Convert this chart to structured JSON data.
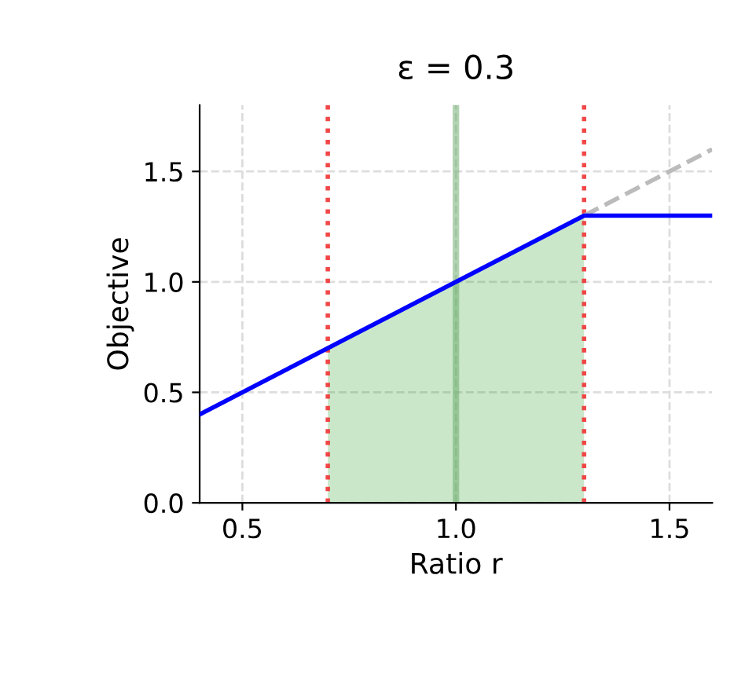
{
  "chart_data": {
    "type": "line",
    "title": "ε = 0.3",
    "xlabel": "Ratio r",
    "ylabel": "Objective",
    "series": [
      {
        "type": "area",
        "color": "#2ca02c",
        "x": [
          0.7,
          1.3
        ],
        "values": [
          0.7,
          1.3
        ]
      },
      {
        "type": "line",
        "color": "#bbbbbb",
        "line_style": "dashed",
        "x": [
          1.3,
          1.6
        ],
        "values": [
          1.3,
          1.6
        ]
      },
      {
        "color": "#0000ff",
        "line_style": "solid",
        "x": [
          0.4,
          1.3,
          1.6
        ],
        "values": [
          0.4,
          1.3,
          1.3
        ]
      }
    ],
    "ref_lines": [
      {
        "axis": "x",
        "value": 0.7,
        "color": "#ee3333",
        "line_style": "dotted"
      },
      {
        "axis": "x",
        "value": 1.3,
        "color": "#ee3333",
        "line_style": "dotted"
      },
      {
        "axis": "x",
        "value": 1.0,
        "color": "#66aa66",
        "line_style": "solid"
      }
    ],
    "xlim": [
      0.4,
      1.6
    ],
    "xticks": [
      0.5,
      {
        "value": 1.0,
        "label": "1.0"
      },
      1.5
    ],
    "ylim": [
      0,
      1.8
    ],
    "yticks": [
      {
        "value": 0,
        "label": "0.0"
      },
      0.5,
      {
        "value": 1.0,
        "label": "1.0"
      },
      1.5
    ],
    "grid": true,
    "legend": false
  }
}
